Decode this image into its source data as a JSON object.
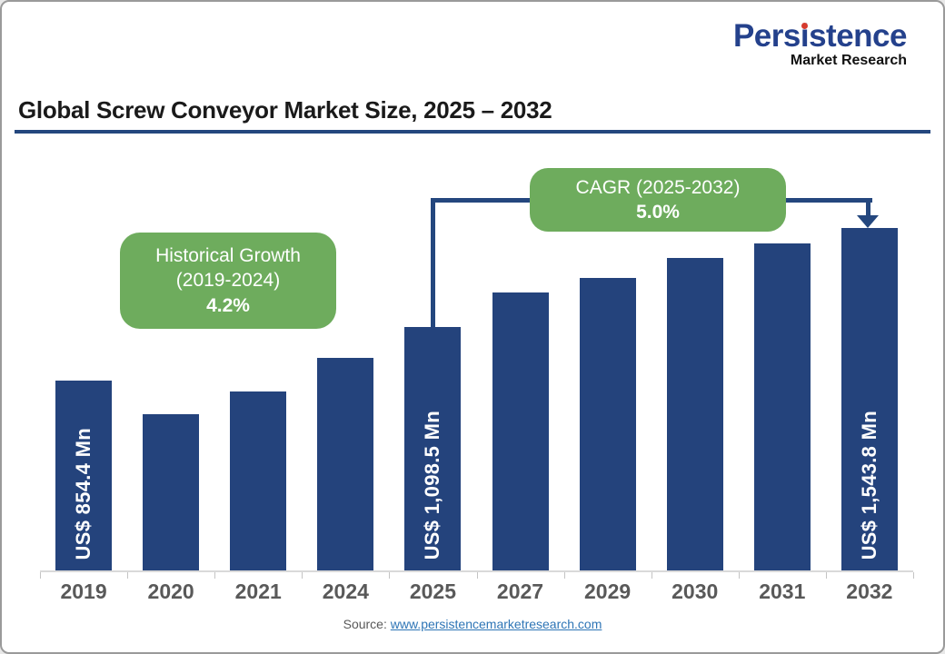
{
  "logo": {
    "brand_pre": "Pers",
    "brand_i": "i",
    "brand_post": "stence",
    "tagline": "Market Research",
    "brand_color": "#24418C",
    "dot_color": "#D63B2F"
  },
  "header": {
    "title": "Global Screw Conveyor Market Size, 2025 – 2032",
    "rule_color": "#24477E"
  },
  "annotations": {
    "historical": {
      "line1": "Historical Growth",
      "line2": "(2019-2024)",
      "value": "4.2%"
    },
    "cagr": {
      "line1": "CAGR (2025-2032)",
      "value": "5.0%"
    },
    "callout_color": "#6EAC5D",
    "arrow_color": "#24477E"
  },
  "chart_data": {
    "type": "bar",
    "title": "Global Screw Conveyor Market Size, 2025 – 2032",
    "categories": [
      "2019",
      "2020",
      "2021",
      "2024",
      "2025",
      "2027",
      "2029",
      "2030",
      "2031",
      "2032"
    ],
    "values": [
      854.4,
      705,
      805,
      960,
      1098.5,
      1255,
      1320,
      1410,
      1475,
      1543.8
    ],
    "labels": [
      "US$ 854.4 Mn",
      "",
      "",
      "",
      "US$ 1,098.5 Mn",
      "",
      "",
      "",
      "",
      "US$ 1,543.8 Mn"
    ],
    "estimated": [
      false,
      true,
      true,
      true,
      false,
      true,
      true,
      true,
      true,
      false
    ],
    "unit": "US$ Mn",
    "xlabel": "",
    "ylabel": "",
    "ylim": [
      0,
      1600
    ],
    "grid": false,
    "legend": "none",
    "bar_color": "#24437C",
    "axis_label_color": "#595959"
  },
  "footer": {
    "source_label": "Source:",
    "source_link": "www.persistencemarketresearch.com"
  }
}
